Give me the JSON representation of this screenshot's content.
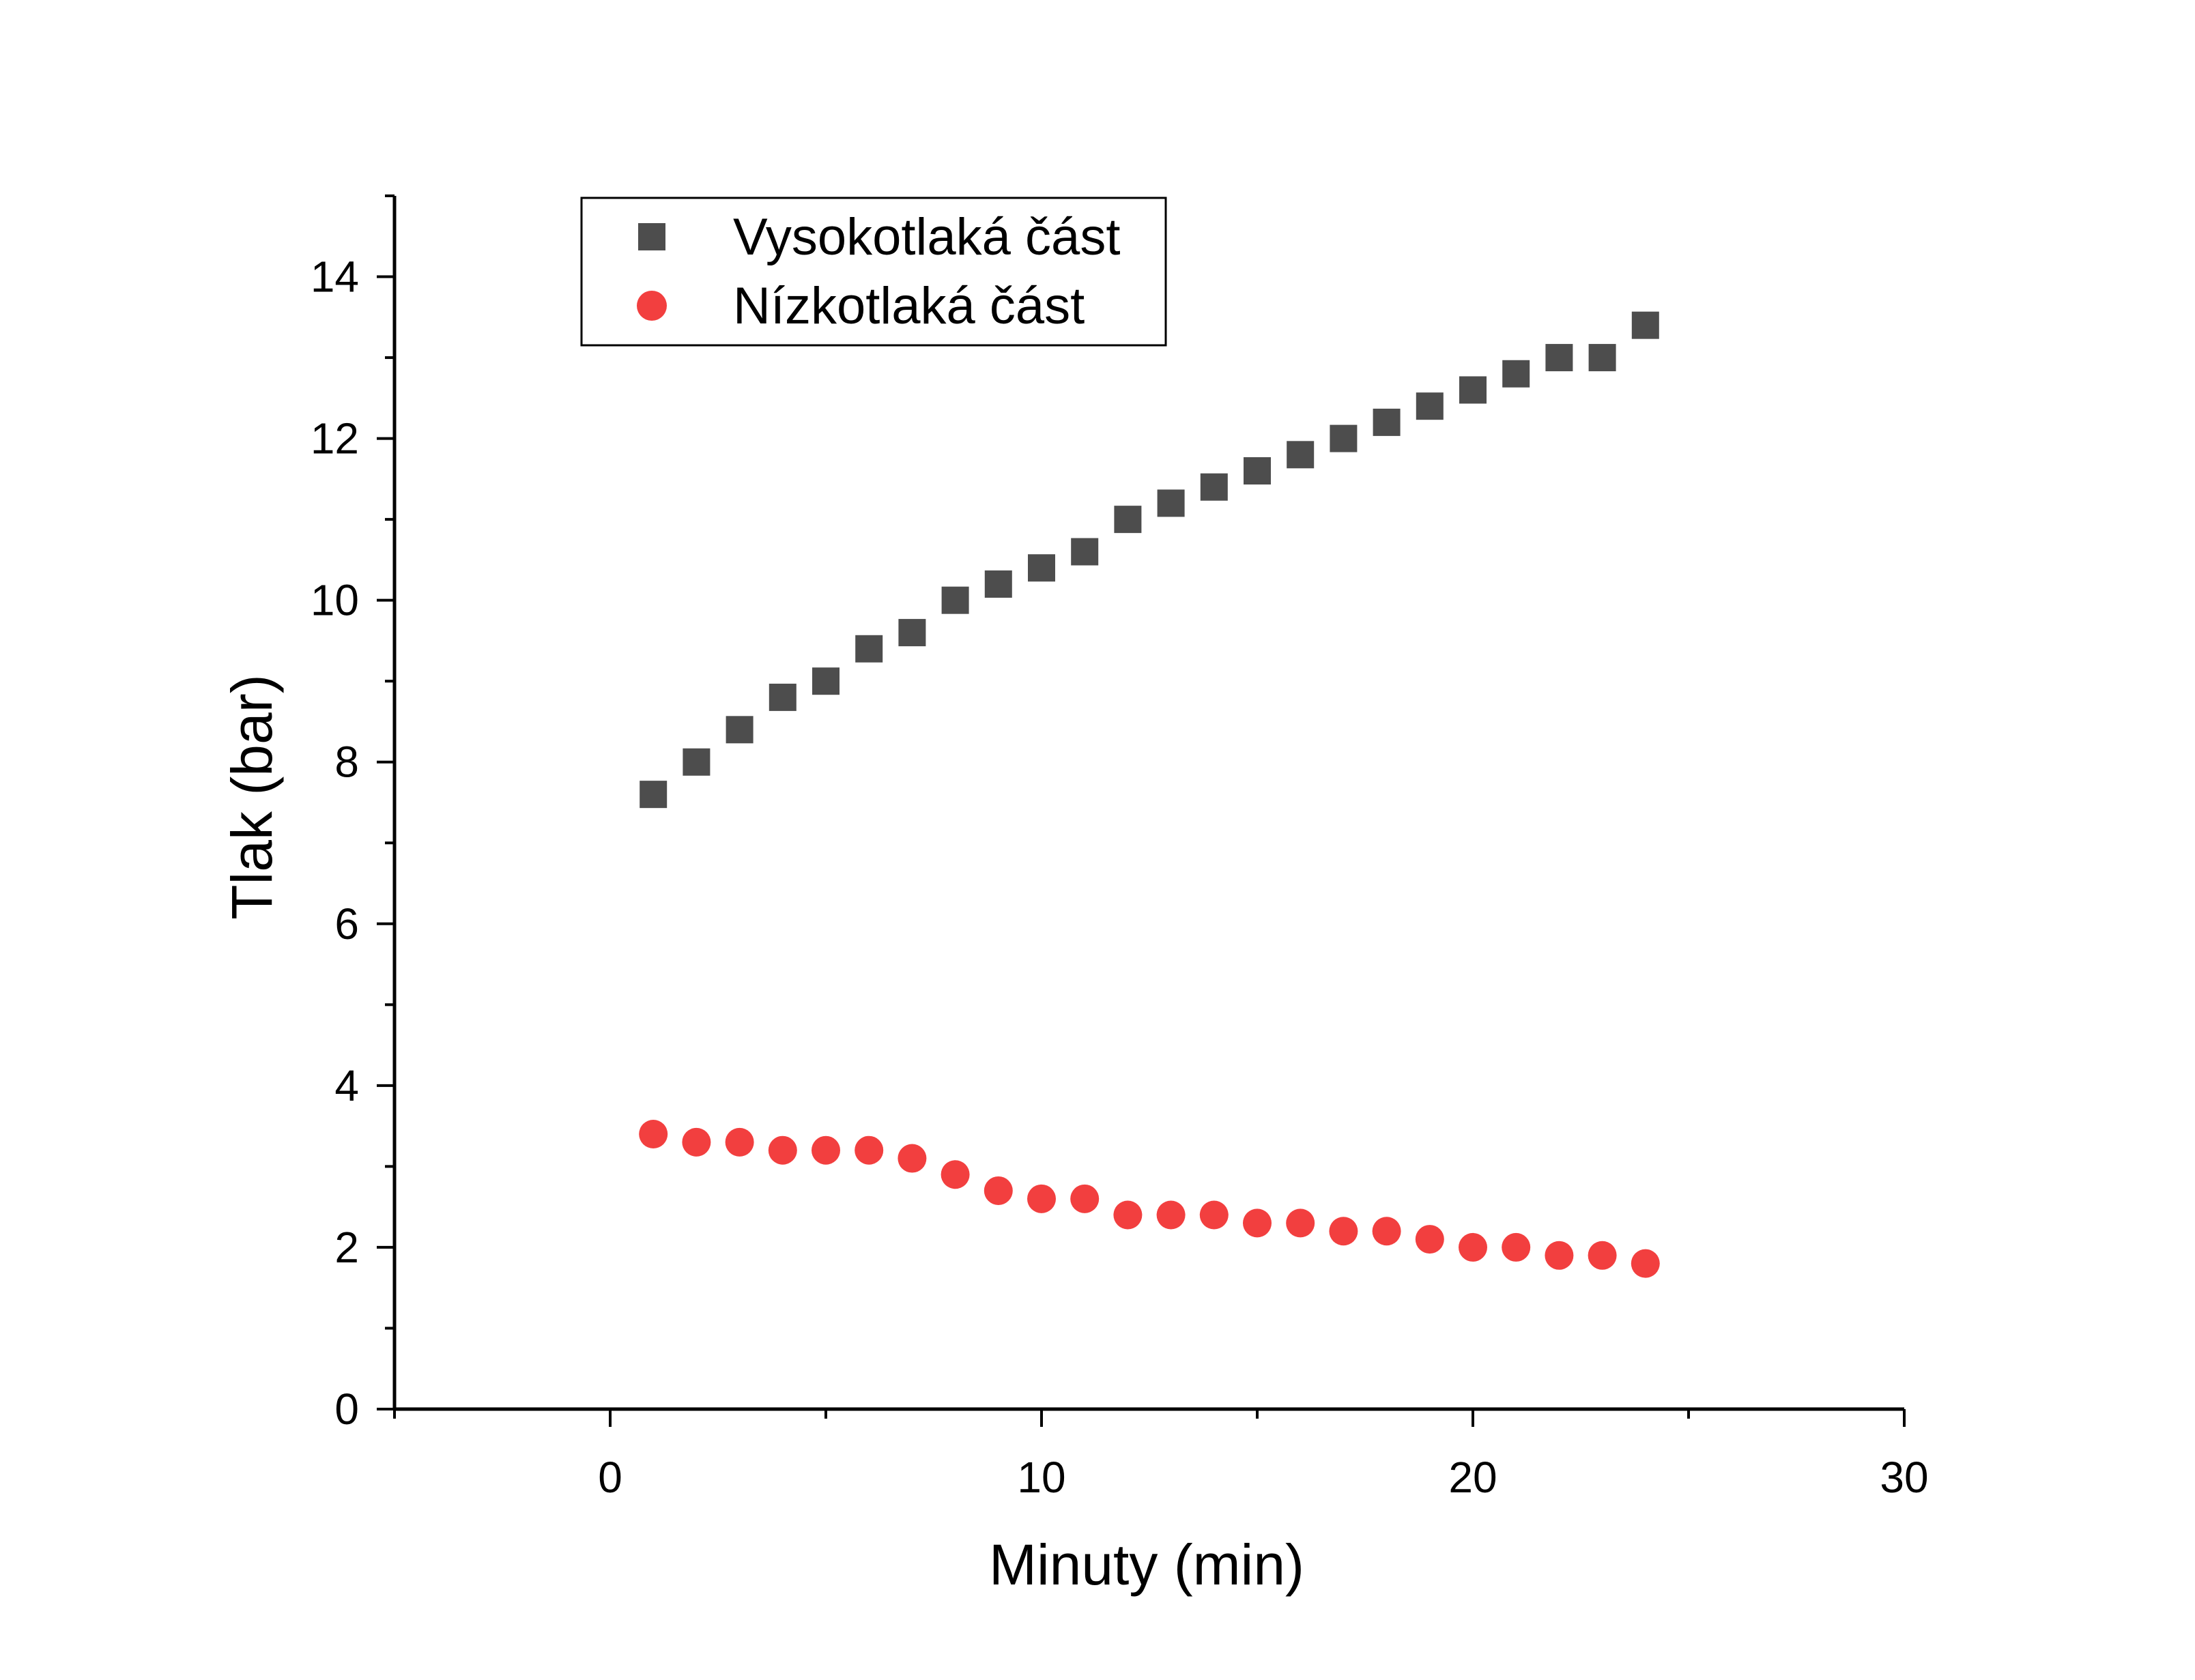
{
  "chart_data": {
    "type": "scatter",
    "title": "",
    "xlabel": "Minuty (min)",
    "ylabel": "Tlak (bar)",
    "xlim": [
      -5,
      30
    ],
    "ylim": [
      0,
      15
    ],
    "x_ticks": [
      0,
      10,
      20,
      30
    ],
    "y_ticks": [
      0,
      2,
      4,
      6,
      8,
      10,
      12,
      14
    ],
    "grid": false,
    "legend_position": "top-left",
    "x": [
      1,
      2,
      3,
      4,
      5,
      6,
      7,
      8,
      9,
      10,
      11,
      12,
      13,
      14,
      15,
      16,
      17,
      18,
      19,
      20,
      21,
      22,
      23,
      24
    ],
    "series": [
      {
        "name": "Vysokotlaká část",
        "marker": "square",
        "color": "#4d4d4d",
        "values": [
          7.6,
          8.0,
          8.4,
          8.8,
          9.0,
          9.4,
          9.6,
          10.0,
          10.2,
          10.4,
          10.6,
          11.0,
          11.2,
          11.4,
          11.6,
          11.8,
          12.0,
          12.2,
          12.4,
          12.6,
          12.8,
          13.0,
          13.0,
          13.4
        ]
      },
      {
        "name": "Nízkotlaká část",
        "marker": "circle",
        "color": "#f23f3f",
        "values": [
          3.4,
          3.3,
          3.3,
          3.2,
          3.2,
          3.2,
          3.1,
          2.9,
          2.7,
          2.6,
          2.6,
          2.4,
          2.4,
          2.4,
          2.3,
          2.3,
          2.2,
          2.2,
          2.1,
          2.0,
          2.0,
          1.9,
          1.9,
          1.8
        ]
      }
    ]
  }
}
